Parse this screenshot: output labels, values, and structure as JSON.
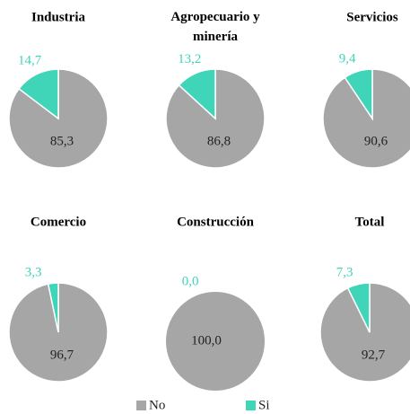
{
  "chart_data": [
    {
      "type": "pie",
      "title": "Industria",
      "values": [
        85.3,
        14.7
      ],
      "value_labels": [
        "85,3",
        "14,7"
      ]
    },
    {
      "type": "pie",
      "title": "Agropecuario y minería",
      "values": [
        86.8,
        13.2
      ],
      "value_labels": [
        "86,8",
        "13,2"
      ]
    },
    {
      "type": "pie",
      "title": "Servicios",
      "values": [
        90.6,
        9.4
      ],
      "value_labels": [
        "90,6",
        "9,4"
      ]
    },
    {
      "type": "pie",
      "title": "Comercio",
      "values": [
        96.7,
        3.3
      ],
      "value_labels": [
        "96,7",
        "3,3"
      ]
    },
    {
      "type": "pie",
      "title": "Construcción",
      "values": [
        100.0,
        0.0
      ],
      "value_labels": [
        "100,0",
        "0,0"
      ]
    },
    {
      "type": "pie",
      "title": "Total",
      "values": [
        92.7,
        7.3
      ],
      "value_labels": [
        "92,7",
        "7,3"
      ]
    }
  ],
  "legend": [
    {
      "name": "No",
      "color": "#a6a6a6"
    },
    {
      "name": "Si",
      "color": "#40d4b8"
    }
  ]
}
